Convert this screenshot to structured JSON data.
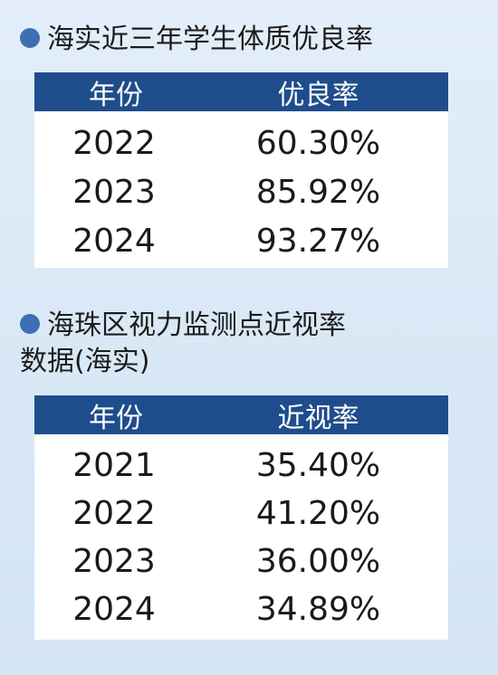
{
  "section1": {
    "title": "海实近三年学生体质优良率",
    "headers": [
      "年份",
      "优良率"
    ],
    "rows": [
      {
        "year": "2022",
        "value": "60.30%"
      },
      {
        "year": "2023",
        "value": "85.92%"
      },
      {
        "year": "2024",
        "value": "93.27%"
      }
    ]
  },
  "section2": {
    "title_line1": "海珠区视力监测点近视率",
    "title_line2": "数据(海实)",
    "headers": [
      "年份",
      "近视率"
    ],
    "rows": [
      {
        "year": "2021",
        "value": "35.40%"
      },
      {
        "year": "2022",
        "value": "41.20%"
      },
      {
        "year": "2023",
        "value": "36.00%"
      },
      {
        "year": "2024",
        "value": "34.89%"
      }
    ]
  },
  "colors": {
    "header_bg": "#1f4d8c",
    "bullet": "#3f6fb3",
    "background": "#dbe9f7"
  }
}
